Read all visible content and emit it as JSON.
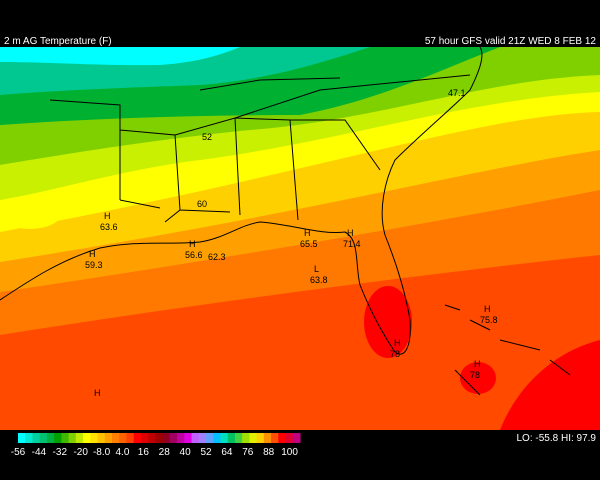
{
  "header": {
    "title": "2 m AG Temperature (F)",
    "model": "57 hour GFS valid 21Z WED  8 FEB 12"
  },
  "map": {
    "labels": [
      {
        "text": "47.1"
      },
      {
        "text": "52"
      },
      {
        "text": "60"
      },
      {
        "mark": "H",
        "text": "63.6"
      },
      {
        "mark": "H",
        "text": "59.3"
      },
      {
        "mark": "H",
        "text": "56.6"
      },
      {
        "text": "62.3"
      },
      {
        "mark": "H",
        "text": "65.5"
      },
      {
        "mark": "H",
        "text": "71.4"
      },
      {
        "mark": "L",
        "text": "63.8"
      },
      {
        "mark": "H",
        "text": "78"
      },
      {
        "mark": "H",
        "text": "75.8"
      },
      {
        "mark": "H",
        "text": "78"
      },
      {
        "mark": "H"
      }
    ]
  },
  "legend": {
    "colors": [
      "#00ffff",
      "#00e8d0",
      "#00d0a0",
      "#00c070",
      "#00b040",
      "#00a000",
      "#40b800",
      "#80d000",
      "#c0e800",
      "#ffff00",
      "#ffe000",
      "#ffc000",
      "#ffa000",
      "#ff8000",
      "#ff6000",
      "#ff4000",
      "#ff0000",
      "#e00000",
      "#c00000",
      "#a00000",
      "#900020",
      "#a00060",
      "#c000a0",
      "#e000e0",
      "#c060ff",
      "#a080ff",
      "#60a0ff",
      "#00c0ff",
      "#00e0c0",
      "#00c060",
      "#40d040",
      "#a0e000",
      "#e0f000",
      "#ffd000",
      "#ff9000",
      "#ff5000",
      "#ff0000",
      "#e00030",
      "#c00080"
    ],
    "ticks": [
      "-56",
      "-44",
      "-32",
      "-20",
      "-8.0",
      "4.0",
      "16",
      "28",
      "40",
      "52",
      "64",
      "76",
      "88",
      "100"
    ]
  },
  "stats": "LO: -55.8  HI: 97.9"
}
